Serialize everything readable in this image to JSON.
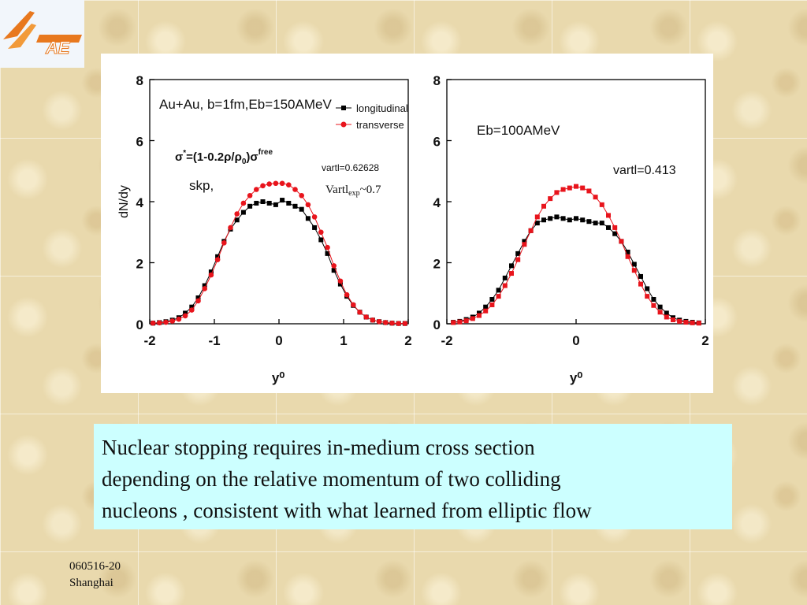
{
  "logo": {
    "text": "AE",
    "icon": "iae-logo-icon"
  },
  "caption": {
    "lines": [
      "Nuclear stopping requires in-medium cross section",
      "depending on the relative momentum of two colliding",
      "nucleons , consistent with what learned from elliptic flow"
    ]
  },
  "footer": {
    "line1": "060516-20",
    "line2": "Shanghai"
  },
  "chart_data": [
    {
      "type": "scatter",
      "title": "Au+Au, b=1fm,Eb=150AMeV",
      "xlabel": "y⁰",
      "ylabel": "dN/dy",
      "xlim": [
        -2,
        2
      ],
      "ylim": [
        0,
        8
      ],
      "xticks": [
        "-2",
        "-1",
        "0",
        "1",
        "2"
      ],
      "yticks": [
        "0",
        "2",
        "4",
        "6",
        "8"
      ],
      "legend": {
        "placement": "top-right",
        "entries": [
          "longitudinal",
          "transverse"
        ]
      },
      "annotations": {
        "formula": "σ*=(1-0.2ρ/ρ0)σfree",
        "model": "skp,",
        "vartl": "vartl=0.62628",
        "vartl_exp": "Vartlexp~0.7"
      },
      "series": [
        {
          "name": "longitudinal",
          "color": "#000000",
          "marker": "square",
          "x": [
            -1.95,
            -1.85,
            -1.75,
            -1.65,
            -1.55,
            -1.45,
            -1.35,
            -1.25,
            -1.15,
            -1.05,
            -0.95,
            -0.85,
            -0.75,
            -0.65,
            -0.55,
            -0.45,
            -0.35,
            -0.25,
            -0.15,
            -0.05,
            0.05,
            0.15,
            0.25,
            0.35,
            0.45,
            0.55,
            0.65,
            0.75,
            0.85,
            0.95,
            1.05,
            1.15,
            1.25,
            1.35,
            1.45,
            1.55,
            1.65,
            1.75,
            1.85,
            1.95
          ],
          "y": [
            0.02,
            0.04,
            0.07,
            0.12,
            0.2,
            0.35,
            0.55,
            0.85,
            1.25,
            1.7,
            2.2,
            2.7,
            3.1,
            3.4,
            3.65,
            3.85,
            3.95,
            4.0,
            3.95,
            3.9,
            4.05,
            3.95,
            3.85,
            3.75,
            3.45,
            3.15,
            2.75,
            2.3,
            1.75,
            1.3,
            0.9,
            0.6,
            0.38,
            0.22,
            0.12,
            0.07,
            0.04,
            0.02,
            0.01,
            0.01
          ]
        },
        {
          "name": "transverse",
          "color": "#e8141c",
          "marker": "circle",
          "x": [
            -1.95,
            -1.85,
            -1.75,
            -1.65,
            -1.55,
            -1.45,
            -1.35,
            -1.25,
            -1.15,
            -1.05,
            -0.95,
            -0.85,
            -0.75,
            -0.65,
            -0.55,
            -0.45,
            -0.35,
            -0.25,
            -0.15,
            -0.05,
            0.05,
            0.15,
            0.25,
            0.35,
            0.45,
            0.55,
            0.65,
            0.75,
            0.85,
            0.95,
            1.05,
            1.15,
            1.25,
            1.35,
            1.45,
            1.55,
            1.65,
            1.75,
            1.85,
            1.95
          ],
          "y": [
            0.02,
            0.03,
            0.05,
            0.09,
            0.15,
            0.26,
            0.45,
            0.75,
            1.15,
            1.6,
            2.1,
            2.65,
            3.15,
            3.6,
            3.95,
            4.2,
            4.4,
            4.52,
            4.58,
            4.6,
            4.6,
            4.55,
            4.4,
            4.2,
            3.9,
            3.5,
            3.0,
            2.5,
            1.9,
            1.4,
            0.95,
            0.62,
            0.38,
            0.22,
            0.12,
            0.07,
            0.04,
            0.02,
            0.01,
            0.01
          ]
        }
      ]
    },
    {
      "type": "scatter",
      "title": "Eb=100AMeV",
      "xlabel": "y⁰",
      "ylabel": "",
      "xlim": [
        -2,
        2
      ],
      "ylim": [
        0,
        8
      ],
      "xticks": [
        "-2",
        "0",
        "2"
      ],
      "yticks": [
        "0",
        "2",
        "4",
        "6",
        "8"
      ],
      "annotations": {
        "vartl": "vartl=0.413"
      },
      "series": [
        {
          "name": "",
          "color": "#000000",
          "marker": "square",
          "x": [
            -1.9,
            -1.8,
            -1.7,
            -1.6,
            -1.5,
            -1.4,
            -1.3,
            -1.2,
            -1.1,
            -1.0,
            -0.9,
            -0.8,
            -0.7,
            -0.6,
            -0.5,
            -0.4,
            -0.3,
            -0.2,
            -0.1,
            0.0,
            0.1,
            0.2,
            0.3,
            0.4,
            0.5,
            0.6,
            0.7,
            0.8,
            0.9,
            1.0,
            1.1,
            1.2,
            1.3,
            1.4,
            1.5,
            1.6,
            1.7,
            1.8,
            1.9
          ],
          "y": [
            0.05,
            0.08,
            0.14,
            0.22,
            0.35,
            0.55,
            0.8,
            1.1,
            1.5,
            1.9,
            2.3,
            2.7,
            3.05,
            3.3,
            3.4,
            3.45,
            3.5,
            3.45,
            3.4,
            3.45,
            3.4,
            3.35,
            3.3,
            3.3,
            3.15,
            2.95,
            2.7,
            2.35,
            1.95,
            1.55,
            1.15,
            0.8,
            0.55,
            0.35,
            0.2,
            0.12,
            0.08,
            0.05,
            0.03
          ]
        },
        {
          "name": "",
          "color": "#e8141c",
          "marker": "square",
          "x": [
            -1.9,
            -1.8,
            -1.7,
            -1.6,
            -1.5,
            -1.4,
            -1.3,
            -1.2,
            -1.1,
            -1.0,
            -0.9,
            -0.8,
            -0.7,
            -0.6,
            -0.5,
            -0.4,
            -0.3,
            -0.2,
            -0.1,
            0.0,
            0.1,
            0.2,
            0.3,
            0.4,
            0.5,
            0.6,
            0.7,
            0.8,
            0.9,
            1.0,
            1.1,
            1.2,
            1.3,
            1.4,
            1.5,
            1.6,
            1.7,
            1.8,
            1.9
          ],
          "y": [
            0.04,
            0.06,
            0.1,
            0.17,
            0.27,
            0.42,
            0.62,
            0.9,
            1.25,
            1.65,
            2.1,
            2.6,
            3.05,
            3.5,
            3.85,
            4.1,
            4.3,
            4.4,
            4.45,
            4.5,
            4.45,
            4.35,
            4.15,
            3.9,
            3.55,
            3.15,
            2.7,
            2.2,
            1.75,
            1.3,
            0.9,
            0.6,
            0.38,
            0.22,
            0.13,
            0.08,
            0.05,
            0.03,
            0.02
          ]
        }
      ]
    }
  ]
}
